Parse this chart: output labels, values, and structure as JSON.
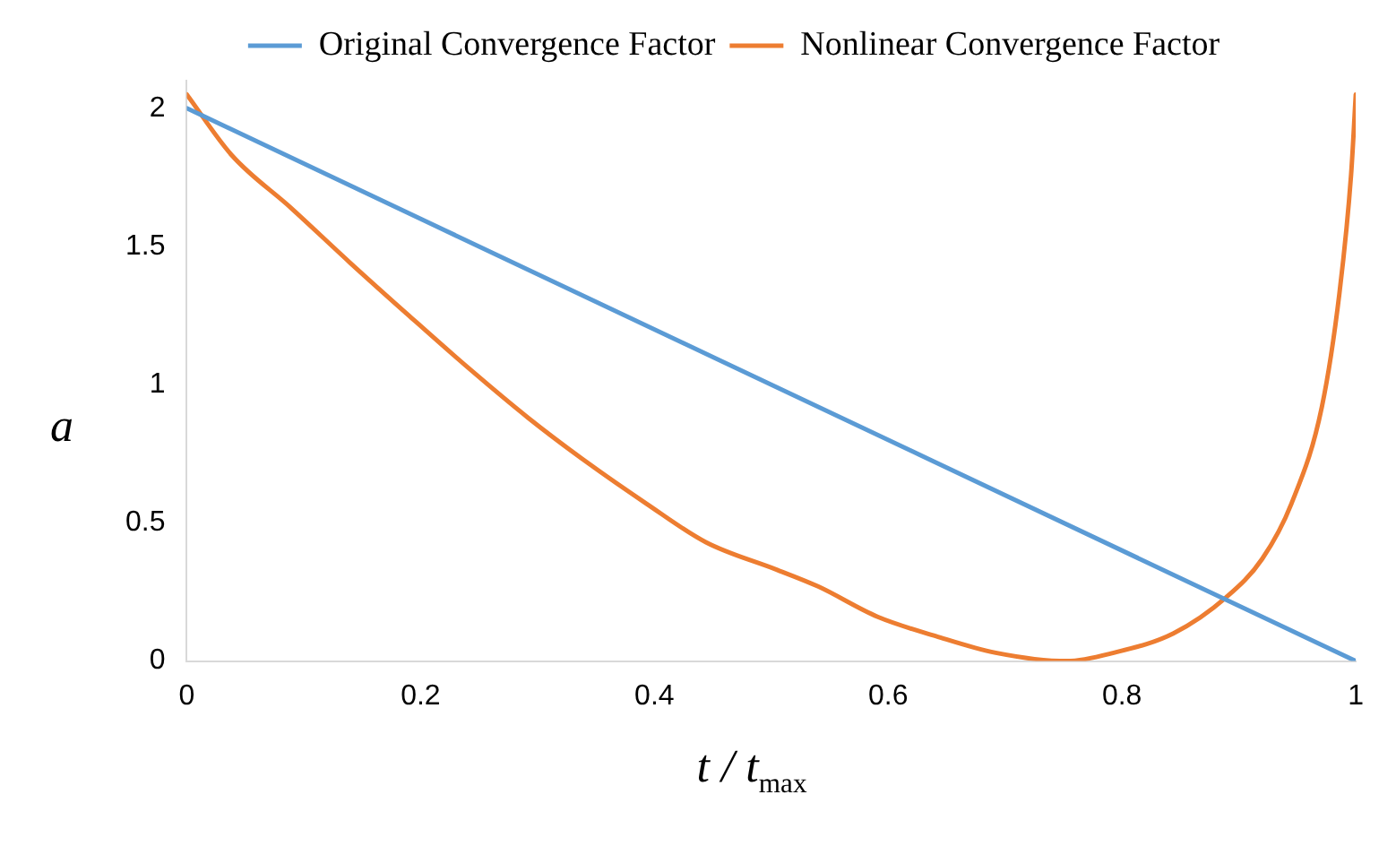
{
  "chart_data": {
    "type": "line",
    "xlabel": "t / t$_{max}$",
    "ylabel": "a",
    "xlim": [
      0,
      1
    ],
    "xticks": [
      0,
      0.2,
      0.4,
      0.6,
      0.8,
      1
    ],
    "ylim": [
      0,
      2.1
    ],
    "yticks": [
      0,
      0.5,
      1,
      1.5,
      2
    ],
    "grid": false,
    "legend": "top",
    "marker": "none",
    "line_style": "solid",
    "series": [
      {
        "name": "Original Convergence Factor",
        "color": "#5b9bd5",
        "x": [
          0,
          1
        ],
        "values": [
          2,
          0
        ]
      },
      {
        "name": "Nonlinear Convergence Factor",
        "color": "#ed7d31",
        "x": [
          0,
          0.0385,
          0.089,
          0.14,
          0.19,
          0.241,
          0.292,
          0.342,
          0.393,
          0.444,
          0.505,
          0.54,
          0.591,
          0.641,
          0.692,
          0.753,
          0.793,
          0.844,
          0.889,
          0.92,
          0.945,
          0.971,
          0.986,
          0.996,
          1
        ],
        "values": [
          2.05,
          1.83,
          1.64,
          1.44,
          1.25,
          1.06,
          0.88,
          0.72,
          0.57,
          0.43,
          0.33,
          0.27,
          0.16,
          0.09,
          0.03,
          0,
          0.03,
          0.1,
          0.23,
          0.37,
          0.57,
          0.92,
          1.33,
          1.76,
          2.05
        ]
      }
    ]
  }
}
